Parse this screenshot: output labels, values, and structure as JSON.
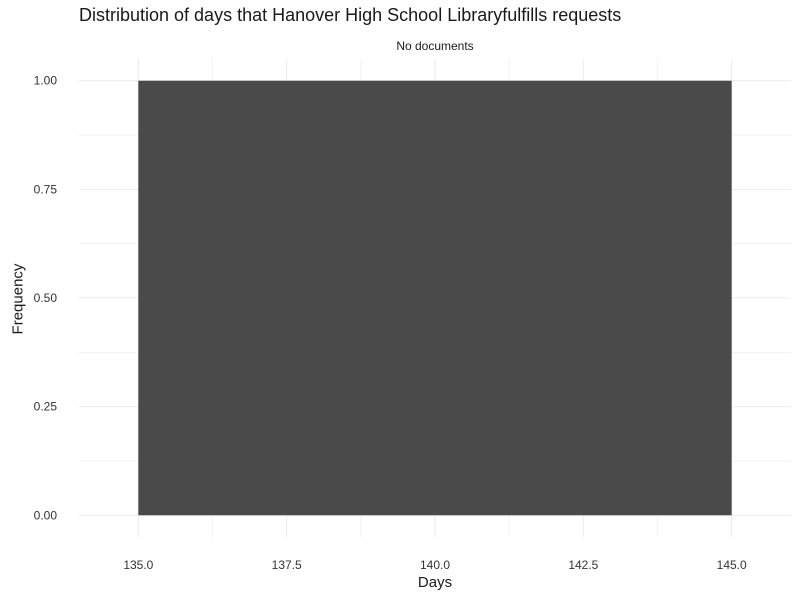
{
  "chart_data": {
    "type": "bar",
    "title": "Distribution of days that Hanover High School Libraryfulfills requests",
    "facet_label": "No documents",
    "xlabel": "Days",
    "ylabel": "Frequency",
    "xlim": [
      134.0,
      146.0
    ],
    "ylim": [
      -0.05,
      1.05
    ],
    "x_ticks": [
      "135.0",
      "137.5",
      "140.0",
      "142.5",
      "145.0"
    ],
    "y_ticks": [
      "0.00",
      "0.25",
      "0.50",
      "0.75",
      "1.00"
    ],
    "bars": [
      {
        "x_start": 135.0,
        "x_end": 145.0,
        "value": 1.0
      }
    ],
    "bar_color": "#4a4a4a",
    "grid": true,
    "grid_color": "#ebebeb"
  }
}
